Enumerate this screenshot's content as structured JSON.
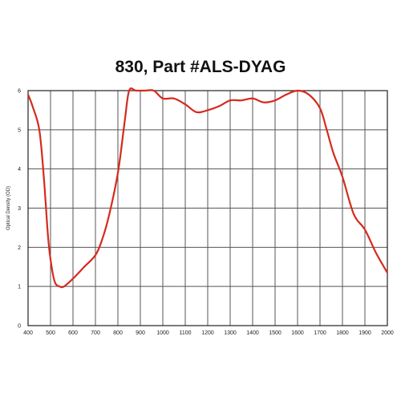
{
  "chart_data": {
    "type": "line",
    "title": "830, Part #ALS-DYAG",
    "xlabel": "",
    "ylabel": "Optical Density (OD)",
    "xlim": [
      400,
      2000
    ],
    "ylim": [
      0,
      6
    ],
    "x_ticks": [
      400,
      500,
      600,
      700,
      800,
      900,
      1000,
      1100,
      1200,
      1300,
      1400,
      1500,
      1600,
      1700,
      1800,
      1900,
      2000
    ],
    "y_ticks": [
      0,
      1,
      2,
      3,
      4,
      5,
      6
    ],
    "grid": true,
    "series": [
      {
        "color": "#d62a1e",
        "x": [
          400,
          420,
          450,
          470,
          490,
          505,
          520,
          540,
          560,
          600,
          650,
          700,
          730,
          760,
          800,
          830,
          850,
          880,
          920,
          960,
          1000,
          1050,
          1100,
          1150,
          1200,
          1250,
          1300,
          1350,
          1400,
          1450,
          1500,
          1550,
          1600,
          1650,
          1700,
          1730,
          1760,
          1800,
          1850,
          1900,
          1950,
          2000
        ],
        "y": [
          5.9,
          5.6,
          5.0,
          3.8,
          2.2,
          1.5,
          1.1,
          1.0,
          1.0,
          1.2,
          1.5,
          1.8,
          2.2,
          2.8,
          3.9,
          5.2,
          6.0,
          6.0,
          6.0,
          6.0,
          5.8,
          5.8,
          5.65,
          5.45,
          5.5,
          5.6,
          5.75,
          5.75,
          5.8,
          5.7,
          5.75,
          5.9,
          6.0,
          5.9,
          5.55,
          5.0,
          4.4,
          3.8,
          2.85,
          2.45,
          1.85,
          1.35
        ]
      }
    ]
  }
}
